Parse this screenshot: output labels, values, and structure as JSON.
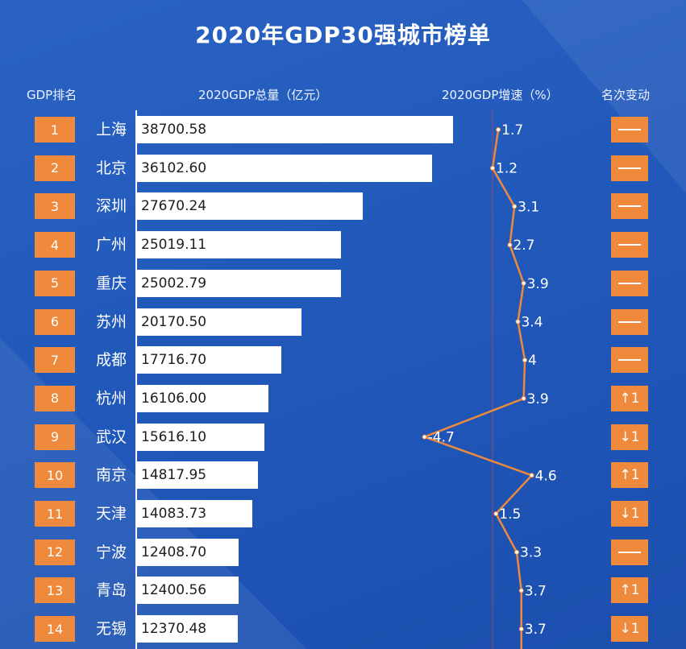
{
  "title": "2020年GDP30强城市榜单",
  "headers": {
    "rank": "GDP排名",
    "gdp": "2020GDP总量（亿元）",
    "growth": "2020GDP增速（%）",
    "change": "名次变动"
  },
  "colors": {
    "badge": "#ef8a3c",
    "bar": "#ffffff",
    "line": "#ef8a3c",
    "background": "#2159bb"
  },
  "rows": [
    {
      "rank": "1",
      "city": "上海",
      "gdp": "38700.58",
      "growth": "1.7",
      "change": "—"
    },
    {
      "rank": "2",
      "city": "北京",
      "gdp": "36102.60",
      "growth": "1.2",
      "change": "—"
    },
    {
      "rank": "3",
      "city": "深圳",
      "gdp": "27670.24",
      "growth": "3.1",
      "change": "—"
    },
    {
      "rank": "4",
      "city": "广州",
      "gdp": "25019.11",
      "growth": "2.7",
      "change": "—"
    },
    {
      "rank": "5",
      "city": "重庆",
      "gdp": "25002.79",
      "growth": "3.9",
      "change": "—"
    },
    {
      "rank": "6",
      "city": "苏州",
      "gdp": "20170.50",
      "growth": "3.4",
      "change": "—"
    },
    {
      "rank": "7",
      "city": "成都",
      "gdp": "17716.70",
      "growth": "4",
      "change": "—"
    },
    {
      "rank": "8",
      "city": "杭州",
      "gdp": "16106.00",
      "growth": "3.9",
      "change": "↑1"
    },
    {
      "rank": "9",
      "city": "武汉",
      "gdp": "15616.10",
      "growth": "-4.7",
      "change": "↓1"
    },
    {
      "rank": "10",
      "city": "南京",
      "gdp": "14817.95",
      "growth": "4.6",
      "change": "↑1"
    },
    {
      "rank": "11",
      "city": "天津",
      "gdp": "14083.73",
      "growth": "1.5",
      "change": "↓1"
    },
    {
      "rank": "12",
      "city": "宁波",
      "gdp": "12408.70",
      "growth": "3.3",
      "change": "—"
    },
    {
      "rank": "13",
      "city": "青岛",
      "gdp": "12400.56",
      "growth": "3.7",
      "change": "↑1"
    },
    {
      "rank": "14",
      "city": "无锡",
      "gdp": "12370.48",
      "growth": "3.7",
      "change": "↓1"
    }
  ],
  "chart_data": [
    {
      "type": "bar",
      "title": "2020GDP总量（亿元）",
      "categories": [
        "上海",
        "北京",
        "深圳",
        "广州",
        "重庆",
        "苏州",
        "成都",
        "杭州",
        "武汉",
        "南京",
        "天津",
        "宁波",
        "青岛",
        "无锡"
      ],
      "values": [
        38700.58,
        36102.6,
        27670.24,
        25019.11,
        25002.79,
        20170.5,
        17716.7,
        16106.0,
        15616.1,
        14817.95,
        14083.73,
        12408.7,
        12400.56,
        12370.48
      ],
      "orientation": "horizontal",
      "data_labels": true
    },
    {
      "type": "line",
      "title": "2020GDP增速（%）",
      "categories": [
        "上海",
        "北京",
        "深圳",
        "广州",
        "重庆",
        "苏州",
        "成都",
        "杭州",
        "武汉",
        "南京",
        "天津",
        "宁波",
        "青岛",
        "无锡"
      ],
      "values": [
        1.7,
        1.2,
        3.1,
        2.7,
        3.9,
        3.4,
        4,
        3.9,
        -4.7,
        4.6,
        1.5,
        3.3,
        3.7,
        3.7
      ],
      "orientation": "vertical",
      "data_labels": true
    }
  ]
}
